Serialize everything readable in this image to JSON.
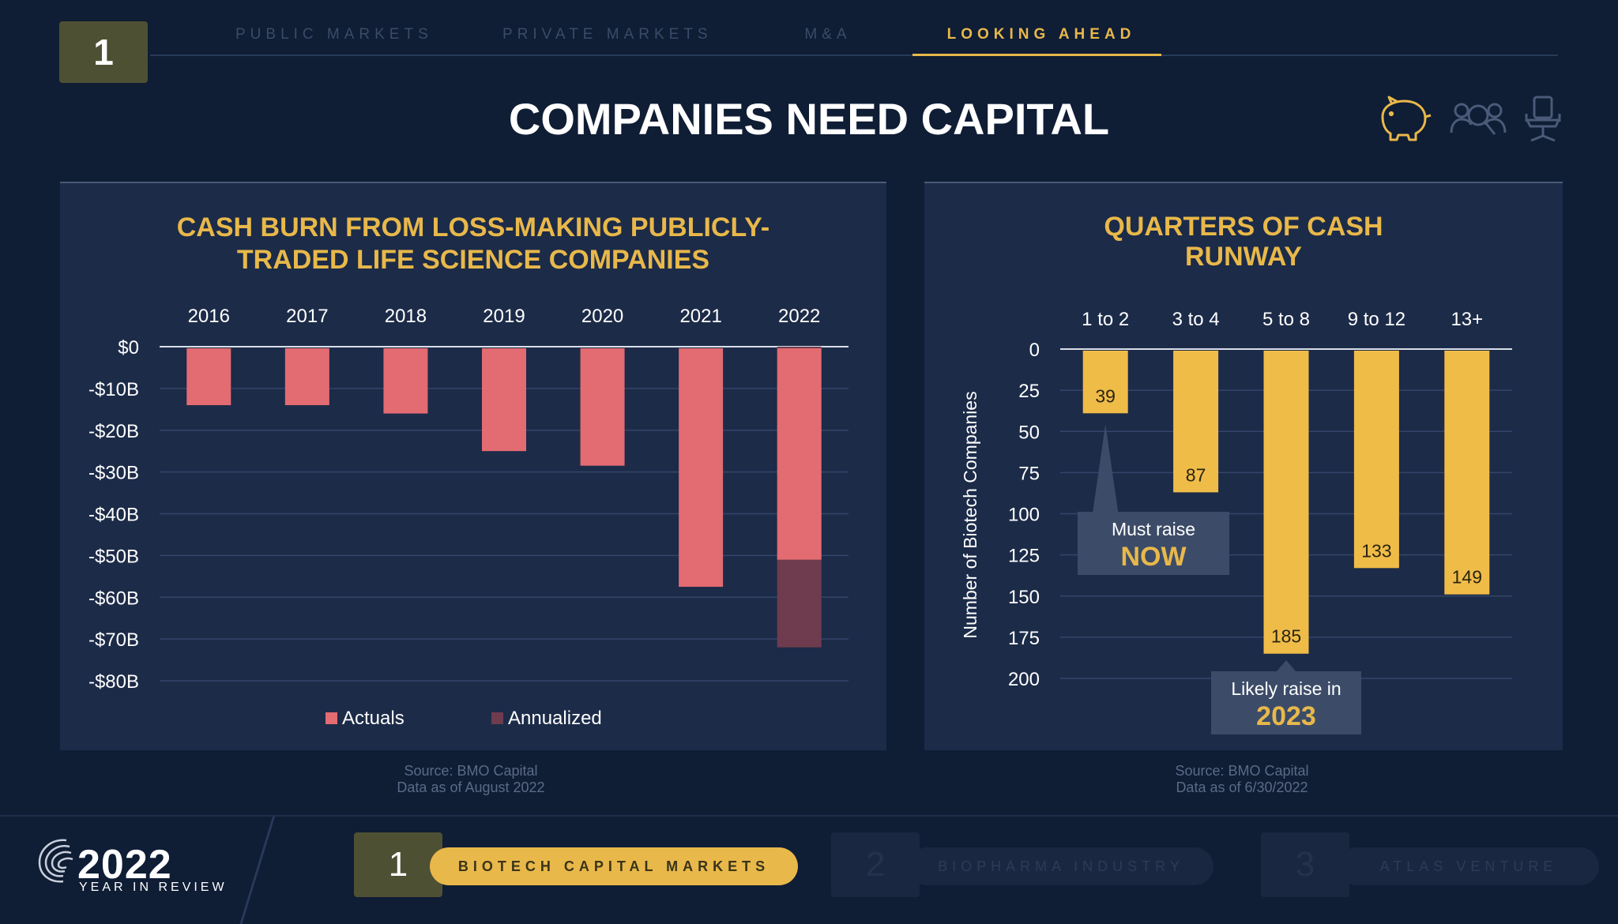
{
  "header": {
    "section_number": "1",
    "tabs": [
      {
        "label": "PUBLIC MARKETS"
      },
      {
        "label": "PRIVATE MARKETS"
      },
      {
        "label": "M&A"
      },
      {
        "label": "LOOKING AHEAD"
      }
    ],
    "active_tab": "LOOKING AHEAD",
    "title": "COMPANIES NEED CAPITAL",
    "icons": [
      "piggy-bank-icon",
      "people-search-icon",
      "office-chair-icon"
    ]
  },
  "left_source": {
    "line1": "Source: BMO Capital",
    "line2": "Data as of August 2022"
  },
  "right_source": {
    "line1": "Source: BMO Capital",
    "line2": "Data as of 6/30/2022"
  },
  "footer": {
    "logo_year": "2022",
    "logo_sub": "YEAR IN REVIEW",
    "sections": [
      {
        "number": "1",
        "label": "BIOTECH CAPITAL MARKETS"
      },
      {
        "number": "2",
        "label": "BIOPHARMA INDUSTRY"
      },
      {
        "number": "3",
        "label": "ATLAS VENTURE"
      }
    ]
  },
  "colors": {
    "accent": "#e8b84a",
    "actuals": "#e36b72",
    "annualized": "#6e3c4e",
    "runway_bar": "#f0bc48"
  },
  "chart_data": [
    {
      "type": "bar",
      "title": "CASH BURN FROM LOSS-MAKING PUBLICLY-TRADED LIFE SCIENCE COMPANIES",
      "title_lines": [
        "CASH BURN FROM LOSS-MAKING PUBLICLY-",
        "TRADED LIFE SCIENCE COMPANIES"
      ],
      "categories": [
        "2016",
        "2017",
        "2018",
        "2019",
        "2020",
        "2021",
        "2022"
      ],
      "series": [
        {
          "name": "Actuals",
          "values": [
            -14,
            -14,
            -16,
            -25,
            -28.5,
            -57.5,
            -51
          ]
        },
        {
          "name": "Annualized",
          "values": [
            null,
            null,
            null,
            null,
            null,
            null,
            -72
          ]
        }
      ],
      "ylim": [
        -80,
        0
      ],
      "yticks": [
        0,
        -10,
        -20,
        -30,
        -40,
        -50,
        -60,
        -70,
        -80
      ],
      "ytick_labels": [
        "$0",
        "-$10B",
        "-$20B",
        "-$30B",
        "-$40B",
        "-$50B",
        "-$60B",
        "-$70B",
        "-$80B"
      ],
      "xlabel": "",
      "ylabel": "",
      "legend": [
        "Actuals",
        "Annualized"
      ],
      "legend_position": "bottom",
      "grid": true
    },
    {
      "type": "bar",
      "title": "QUARTERS OF CASH RUNWAY",
      "title_lines": [
        "QUARTERS OF CASH",
        "RUNWAY"
      ],
      "categories": [
        "1 to 2",
        "3 to 4",
        "5 to 8",
        "9 to 12",
        "13+"
      ],
      "values": [
        39,
        87,
        185,
        133,
        149
      ],
      "ylim": [
        0,
        200
      ],
      "yticks": [
        0,
        25,
        50,
        75,
        100,
        125,
        150,
        175,
        200
      ],
      "ylabel": "Number of Biotech Companies",
      "xlabel": "",
      "grid": true,
      "annotations": [
        {
          "category": "1 to 2",
          "line1": "Must raise",
          "line2": "NOW"
        },
        {
          "category": "5 to 8",
          "line1": "Likely raise in",
          "line2": "2023"
        }
      ]
    }
  ]
}
